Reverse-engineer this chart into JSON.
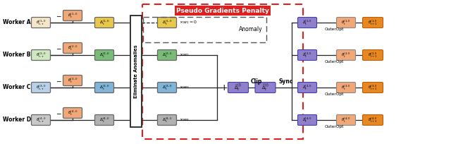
{
  "title": "Pseudo Gradients Penalty",
  "workers": [
    "Worker A",
    "Worker B",
    "Worker C",
    "Worker D"
  ],
  "worker_colors": [
    "#f5e6c8",
    "#d0e8c0",
    "#b8d0e8",
    "#c8c8c8"
  ],
  "delta_colors_left": [
    "#e8c84a",
    "#78bc78",
    "#80b4d8",
    "#b0b0b0"
  ],
  "delta_colors_right": [
    "#e8c84a",
    "#78bc78",
    "#80b4d8",
    "#b0b0b0"
  ],
  "theta_color": "#f0a878",
  "purple_color": "#9080cc",
  "purple_light": "#b0a0e0",
  "orange_color": "#e88820",
  "red_border": "#dd2020",
  "eliminate_label": "Eliminate Anomalies",
  "clip_label": "Clip",
  "sync_label": "Sync",
  "outeropt_label": "OuterOpt",
  "anomaly_label": "Anomaly",
  "w_labels": [
    "\\times w_1 = 0",
    "\\times w_2",
    "\\times w_3",
    "\\times w_4"
  ]
}
